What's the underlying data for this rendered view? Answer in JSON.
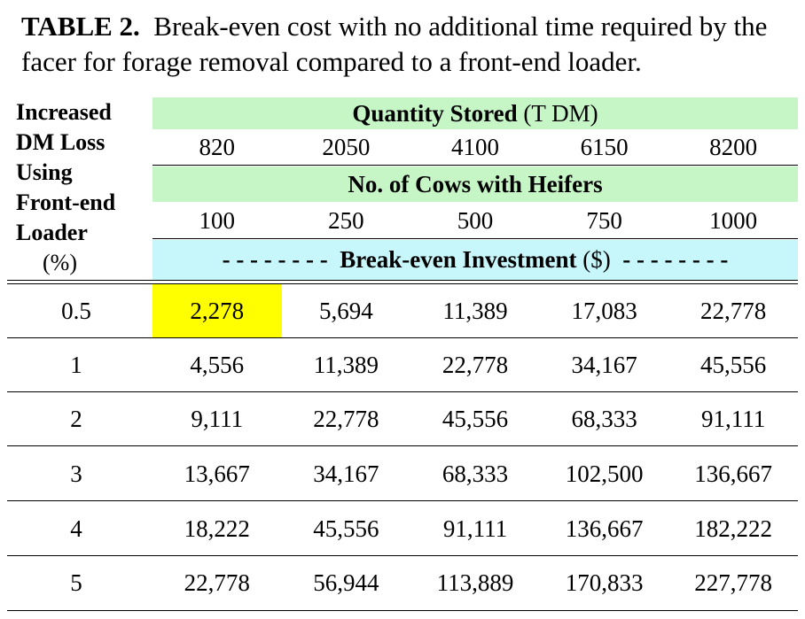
{
  "caption": {
    "label": "TABLE 2.",
    "text": "Break-even cost with no additional time required by the facer for forage removal compared to a front-end loader."
  },
  "stub_header": {
    "lines": [
      "Increased",
      "DM Loss",
      "Using",
      "Front-end",
      "Loader"
    ],
    "unit": "(%)"
  },
  "quantity_header": {
    "label": "Quantity Stored",
    "unit": "(T DM)"
  },
  "quantities": [
    "820",
    "2050",
    "4100",
    "6150",
    "8200"
  ],
  "cows_header": {
    "label": "No. of Cows with Heifers"
  },
  "cows": [
    "100",
    "250",
    "500",
    "750",
    "1000"
  ],
  "investment_header": {
    "dashes_left": "- - - - - - - -",
    "label": "Break-even Investment",
    "unit": "($)",
    "dashes_right": "- - - - - - - -"
  },
  "rows": [
    {
      "loss": "0.5",
      "values": [
        "2,278",
        "5,694",
        "11,389",
        "17,083",
        "22,778"
      ]
    },
    {
      "loss": "1",
      "values": [
        "4,556",
        "11,389",
        "22,778",
        "34,167",
        "45,556"
      ]
    },
    {
      "loss": "2",
      "values": [
        "9,111",
        "22,778",
        "45,556",
        "68,333",
        "91,111"
      ]
    },
    {
      "loss": "3",
      "values": [
        "13,667",
        "34,167",
        "68,333",
        "102,500",
        "136,667"
      ]
    },
    {
      "loss": "4",
      "values": [
        "18,222",
        "45,556",
        "91,111",
        "136,667",
        "182,222"
      ]
    },
    {
      "loss": "5",
      "values": [
        "22,778",
        "56,944",
        "113,889",
        "170,833",
        "227,778"
      ]
    }
  ],
  "highlight_color": "#ffff00",
  "header_green": "#c6f5c6",
  "header_cyan": "#c8f7fb"
}
